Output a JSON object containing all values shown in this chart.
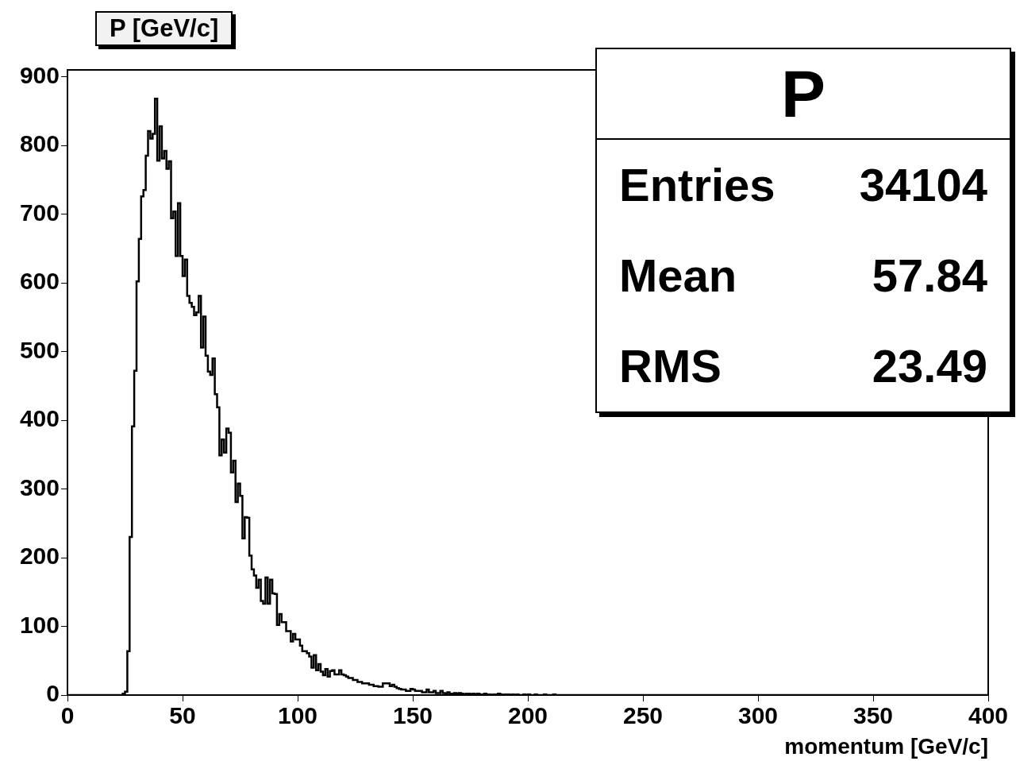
{
  "chart_data": {
    "type": "histogram",
    "title": "P [GeV/c]",
    "xlabel": "momentum [GeV/c]",
    "bins": [
      0,
      1,
      2,
      3,
      4,
      5,
      6,
      7,
      8,
      9,
      10,
      11,
      12,
      13,
      14,
      15,
      16,
      17,
      18,
      19,
      20,
      21,
      22,
      23,
      24,
      25,
      26,
      27,
      28,
      29,
      30,
      31,
      32,
      33,
      34,
      35,
      36,
      37,
      38,
      39,
      40,
      41,
      42,
      43,
      44,
      45,
      46,
      47,
      48,
      49,
      50,
      51,
      52,
      53,
      54,
      55,
      56,
      57,
      58,
      59,
      60,
      61,
      62,
      63,
      64,
      65,
      66,
      67,
      68,
      69,
      70,
      71,
      72,
      73,
      74,
      75,
      76,
      77,
      78,
      79,
      80,
      81,
      82,
      83,
      84,
      85,
      86,
      87,
      88,
      89,
      90,
      91,
      92,
      93,
      94,
      95,
      96,
      97,
      98,
      99,
      100,
      101,
      102,
      103,
      104,
      105,
      106,
      107,
      108,
      109,
      110,
      111,
      112,
      113,
      114,
      115,
      116,
      117,
      118,
      119,
      120,
      121,
      122,
      123,
      124,
      125,
      126,
      127,
      128,
      129,
      130,
      131,
      132,
      133,
      134,
      135,
      136,
      137,
      138,
      139,
      140,
      141,
      142,
      143,
      144,
      145,
      146,
      147,
      148,
      149,
      150,
      151,
      152,
      153,
      154,
      155,
      156,
      157,
      158,
      159,
      160,
      161,
      162,
      163,
      164,
      165,
      166,
      167,
      168,
      169,
      170,
      171,
      172,
      173,
      174,
      175,
      176,
      177,
      178,
      179,
      180,
      181,
      182,
      183,
      184,
      185,
      186,
      187,
      188,
      189,
      190,
      191,
      192,
      193,
      194,
      195,
      196,
      197,
      198,
      199,
      200,
      201,
      202,
      203,
      204,
      205,
      206,
      207,
      208,
      209,
      210,
      211,
      212,
      213,
      214,
      215,
      216,
      217,
      218,
      219,
      220,
      221,
      222,
      223,
      224,
      225,
      226,
      227,
      228,
      229,
      230,
      231,
      232,
      233,
      234,
      235,
      236,
      237,
      238,
      239,
      240,
      241,
      242,
      243,
      244,
      245,
      246,
      247,
      248,
      249,
      250,
      251,
      252,
      253,
      254,
      255,
      256,
      257,
      258,
      259,
      260,
      261,
      262,
      263,
      264,
      265,
      266,
      267,
      268,
      269,
      270,
      271,
      272,
      273,
      274,
      275,
      276,
      277,
      278,
      279,
      280,
      281,
      282,
      283,
      284,
      285,
      286,
      287,
      288,
      289,
      290,
      291,
      292,
      293,
      294,
      295,
      296,
      297,
      298,
      299,
      300,
      301,
      302,
      303,
      304,
      305,
      306,
      307,
      308,
      309,
      310,
      311,
      312,
      313,
      314,
      315,
      316,
      317,
      318,
      319,
      320,
      321,
      322,
      323,
      324,
      325,
      326,
      327,
      328,
      329,
      330,
      331,
      332,
      333,
      334,
      335,
      336,
      337,
      338,
      339,
      340,
      341,
      342,
      343,
      344,
      345,
      346,
      347,
      348,
      349,
      350,
      351,
      352,
      353,
      354,
      355,
      356,
      357,
      358,
      359,
      360,
      361,
      362,
      363,
      364,
      365,
      366,
      367,
      368,
      369,
      370,
      371,
      372,
      373,
      374,
      375,
      376,
      377,
      378,
      379,
      380,
      381,
      382,
      383,
      384,
      385,
      386,
      387,
      388,
      389,
      390,
      391,
      392,
      393,
      394,
      395,
      396,
      397,
      398,
      399,
      400
    ],
    "values": [
      0,
      0,
      0,
      0,
      0,
      0,
      0,
      0,
      0,
      0,
      0,
      0,
      0,
      0,
      0,
      0,
      0,
      0,
      0,
      0,
      0,
      0,
      0,
      0,
      0,
      2,
      5,
      64,
      230,
      391,
      472,
      602,
      664,
      726,
      735,
      785,
      821,
      810,
      817,
      868,
      778,
      828,
      781,
      792,
      766,
      777,
      694,
      704,
      639,
      716,
      639,
      610,
      634,
      581,
      571,
      565,
      553,
      557,
      581,
      506,
      551,
      494,
      471,
      466,
      490,
      438,
      419,
      349,
      372,
      353,
      388,
      382,
      324,
      341,
      281,
      308,
      290,
      228,
      259,
      258,
      203,
      183,
      174,
      156,
      168,
      137,
      133,
      171,
      133,
      168,
      148,
      147,
      102,
      118,
      106,
      106,
      93,
      93,
      78,
      89,
      81,
      81,
      72,
      64,
      64,
      61,
      56,
      40,
      58,
      36,
      45,
      34,
      29,
      38,
      27,
      35,
      36,
      30,
      30,
      36,
      30,
      29,
      27,
      25,
      25,
      22,
      22,
      19,
      19,
      17,
      17,
      17,
      15,
      15,
      13,
      13,
      12,
      12,
      17,
      17,
      17,
      13,
      15,
      12,
      10,
      9,
      8,
      8,
      6,
      6,
      9,
      8,
      6,
      6,
      6,
      4,
      4,
      8,
      4,
      4,
      6,
      3,
      3,
      6,
      3,
      2,
      4,
      2,
      2,
      3,
      2,
      3,
      2,
      1,
      2,
      2,
      1,
      2,
      1,
      2,
      1,
      1,
      2,
      1,
      1,
      0,
      1,
      1,
      2,
      1,
      0,
      1,
      1,
      0,
      1,
      0,
      1,
      0,
      0,
      1,
      0,
      1,
      0,
      0,
      1,
      0,
      0,
      0,
      1,
      0,
      0,
      0,
      1,
      0,
      0,
      0,
      0,
      0,
      0,
      0,
      0,
      0,
      0,
      0,
      0,
      0,
      0,
      0,
      0,
      0,
      0,
      0,
      0,
      0,
      0,
      0,
      0,
      0,
      0,
      0,
      0,
      0,
      0,
      0,
      0,
      0,
      0,
      0,
      0,
      0,
      0,
      0,
      0,
      0,
      0,
      0,
      0,
      0,
      0,
      0,
      0,
      0,
      0,
      0,
      0,
      0,
      0,
      0,
      0,
      0,
      0,
      0,
      0,
      0,
      0,
      0,
      0,
      0,
      0,
      0,
      0,
      0,
      0,
      0,
      0,
      0,
      0,
      0,
      0,
      0,
      0,
      0,
      0,
      0,
      0,
      0,
      0,
      0,
      0,
      0,
      0,
      0,
      0,
      0,
      0,
      0,
      0,
      0,
      0,
      0,
      0,
      0,
      0,
      0,
      0,
      0,
      0,
      0,
      0,
      0,
      0,
      0,
      0,
      0,
      0,
      0,
      0,
      0,
      0,
      0,
      0,
      0,
      0,
      0,
      0,
      0,
      0,
      0,
      0,
      0,
      0,
      0,
      0,
      0,
      0,
      0,
      0,
      0,
      0,
      0,
      0,
      0,
      0,
      0,
      0,
      0,
      0,
      0,
      0,
      0,
      0,
      0,
      0,
      0,
      0,
      0,
      0,
      0,
      0,
      0,
      0,
      0,
      0,
      0,
      0,
      0,
      0,
      0,
      0,
      0,
      0,
      0,
      0,
      0,
      0,
      0,
      0,
      0,
      0,
      0,
      0,
      0,
      0,
      0,
      0,
      0,
      0,
      0,
      0,
      0
    ],
    "color": "#000000",
    "xlim": [
      0,
      400
    ],
    "xticks": [
      0,
      50,
      100,
      150,
      200,
      250,
      300,
      350,
      400
    ],
    "ylim": [
      0,
      910
    ],
    "yticks": [
      0,
      100,
      200,
      300,
      400,
      500,
      600,
      700,
      800,
      900
    ],
    "grid": false,
    "legend": false,
    "annotations": [
      "P",
      "Entries",
      "34104",
      "Mean",
      "57.84",
      "RMS",
      "23.49"
    ]
  }
}
